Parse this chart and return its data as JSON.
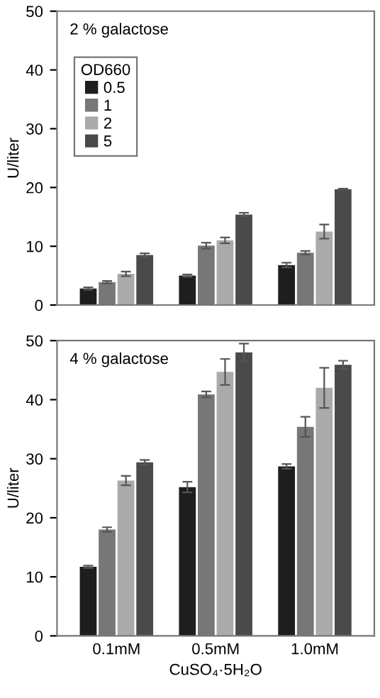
{
  "chart_data": [
    {
      "type": "bar",
      "categories": [
        null,
        null,
        null
      ],
      "ylabel": "U/liter",
      "ylim": [
        0,
        50
      ],
      "yticks": [
        0,
        10,
        20,
        30,
        40,
        50
      ],
      "annotations": [
        "2 % galactose"
      ],
      "legend": "top left",
      "legend_title": "OD660",
      "series": [
        {
          "name": "0.5",
          "color": "#1e1e1e",
          "values": [
            2.8,
            5.0,
            6.8
          ],
          "errors": [
            0.2,
            0.2,
            0.4
          ]
        },
        {
          "name": "1",
          "color": "#777777",
          "values": [
            3.9,
            10.1,
            8.9
          ],
          "errors": [
            0.2,
            0.5,
            0.3
          ]
        },
        {
          "name": "2",
          "color": "#aaaaaa",
          "values": [
            5.3,
            11.0,
            12.5
          ],
          "errors": [
            0.4,
            0.5,
            1.2
          ]
        },
        {
          "name": "5",
          "color": "#4a4a4a",
          "values": [
            8.5,
            15.4,
            19.7
          ],
          "errors": [
            0.3,
            0.3,
            0.1
          ]
        }
      ]
    },
    {
      "type": "bar",
      "categories": [
        "0.1mM",
        "0.5mM",
        "1.0mM"
      ],
      "ylabel": "U/liter",
      "xlabel": "CuSO₄·5H₂O",
      "ylim": [
        0,
        50
      ],
      "yticks": [
        0,
        10,
        20,
        30,
        40,
        50
      ],
      "annotations": [
        "4 % galactose"
      ],
      "series": [
        {
          "color": "#1e1e1e",
          "values": [
            11.7,
            25.2,
            28.7
          ],
          "errors": [
            0.2,
            0.9,
            0.4
          ]
        },
        {
          "color": "#777777",
          "values": [
            18.0,
            40.9,
            35.4
          ],
          "errors": [
            0.4,
            0.5,
            1.7
          ]
        },
        {
          "color": "#aaaaaa",
          "values": [
            26.3,
            44.7,
            42.0
          ],
          "errors": [
            0.8,
            2.2,
            3.4
          ]
        },
        {
          "color": "#4a4a4a",
          "values": [
            29.4,
            48.0,
            45.9
          ],
          "errors": [
            0.4,
            1.5,
            0.7
          ]
        }
      ]
    }
  ]
}
